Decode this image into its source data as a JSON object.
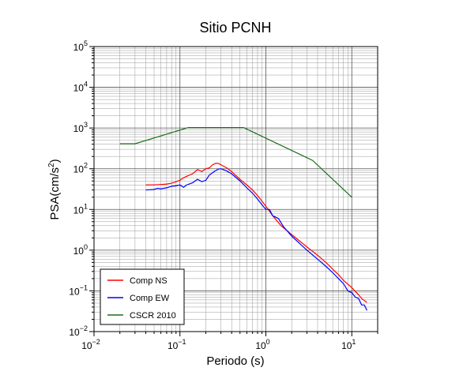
{
  "chart_data": {
    "type": "line",
    "title": "Sitio PCNH",
    "xlabel": "Periodo (s)",
    "ylabel": "PSA(cm/s2)",
    "xscale": "log",
    "yscale": "log",
    "xlim": [
      0.01,
      20
    ],
    "ylim": [
      0.01,
      100000
    ],
    "grid": true,
    "legend_position": "bottom-left",
    "x_ticks": [
      {
        "base": "10",
        "exp": "−2",
        "value": 0.01
      },
      {
        "base": "10",
        "exp": "−1",
        "value": 0.1
      },
      {
        "base": "10",
        "exp": "0",
        "value": 1
      },
      {
        "base": "10",
        "exp": "1",
        "value": 10
      }
    ],
    "y_ticks": [
      {
        "base": "10",
        "exp": "−2",
        "value": 0.01
      },
      {
        "base": "10",
        "exp": "−1",
        "value": 0.1
      },
      {
        "base": "10",
        "exp": "0",
        "value": 1
      },
      {
        "base": "10",
        "exp": "1",
        "value": 10
      },
      {
        "base": "10",
        "exp": "2",
        "value": 100
      },
      {
        "base": "10",
        "exp": "3",
        "value": 1000
      },
      {
        "base": "10",
        "exp": "4",
        "value": 10000
      },
      {
        "base": "10",
        "exp": "5",
        "value": 100000
      }
    ],
    "series": [
      {
        "name": "Comp NS",
        "color": "#ff0000",
        "points": [
          [
            0.04,
            40
          ],
          [
            0.05,
            40
          ],
          [
            0.06,
            41
          ],
          [
            0.07,
            42
          ],
          [
            0.08,
            44
          ],
          [
            0.09,
            48
          ],
          [
            0.1,
            52
          ],
          [
            0.11,
            60
          ],
          [
            0.12,
            65
          ],
          [
            0.14,
            75
          ],
          [
            0.16,
            95
          ],
          [
            0.18,
            85
          ],
          [
            0.2,
            100
          ],
          [
            0.22,
            105
          ],
          [
            0.24,
            125
          ],
          [
            0.26,
            135
          ],
          [
            0.28,
            135
          ],
          [
            0.3,
            125
          ],
          [
            0.35,
            105
          ],
          [
            0.4,
            85
          ],
          [
            0.5,
            55
          ],
          [
            0.6,
            40
          ],
          [
            0.7,
            30
          ],
          [
            0.8,
            22
          ],
          [
            1.0,
            12
          ],
          [
            1.2,
            7
          ],
          [
            1.5,
            4
          ],
          [
            2.0,
            2.4
          ],
          [
            3.0,
            1.2
          ],
          [
            4.0,
            0.75
          ],
          [
            5.0,
            0.5
          ],
          [
            6.0,
            0.34
          ],
          [
            7.0,
            0.25
          ],
          [
            8.0,
            0.18
          ],
          [
            10.0,
            0.12
          ],
          [
            12.0,
            0.08
          ],
          [
            13.0,
            0.065
          ],
          [
            15.0,
            0.052
          ]
        ]
      },
      {
        "name": "Comp EW",
        "color": "#0000ff",
        "points": [
          [
            0.04,
            30
          ],
          [
            0.05,
            31
          ],
          [
            0.055,
            33
          ],
          [
            0.06,
            32
          ],
          [
            0.07,
            34
          ],
          [
            0.08,
            37
          ],
          [
            0.09,
            38
          ],
          [
            0.1,
            40
          ],
          [
            0.11,
            35
          ],
          [
            0.12,
            40
          ],
          [
            0.14,
            45
          ],
          [
            0.16,
            55
          ],
          [
            0.18,
            48
          ],
          [
            0.2,
            52
          ],
          [
            0.22,
            70
          ],
          [
            0.25,
            85
          ],
          [
            0.28,
            98
          ],
          [
            0.3,
            100
          ],
          [
            0.35,
            88
          ],
          [
            0.4,
            75
          ],
          [
            0.5,
            50
          ],
          [
            0.6,
            34
          ],
          [
            0.7,
            25
          ],
          [
            0.8,
            18
          ],
          [
            0.9,
            13
          ],
          [
            1.0,
            10
          ],
          [
            1.1,
            10
          ],
          [
            1.2,
            7
          ],
          [
            1.4,
            6
          ],
          [
            1.6,
            3.8
          ],
          [
            2.0,
            2.2
          ],
          [
            3.0,
            1.0
          ],
          [
            4.0,
            0.6
          ],
          [
            5.0,
            0.4
          ],
          [
            6.0,
            0.28
          ],
          [
            7.0,
            0.2
          ],
          [
            8.0,
            0.15
          ],
          [
            9.0,
            0.1
          ],
          [
            10.0,
            0.09
          ],
          [
            11.0,
            0.07
          ],
          [
            12.0,
            0.065
          ],
          [
            13.0,
            0.045
          ],
          [
            14.0,
            0.045
          ],
          [
            15.0,
            0.033
          ]
        ]
      },
      {
        "name": "CSCR 2010",
        "color": "#1a6e1a",
        "points": [
          [
            0.02,
            410
          ],
          [
            0.03,
            410
          ],
          [
            0.125,
            1025
          ],
          [
            0.55,
            1025
          ],
          [
            3.5,
            160
          ],
          [
            10,
            20
          ]
        ]
      }
    ]
  }
}
